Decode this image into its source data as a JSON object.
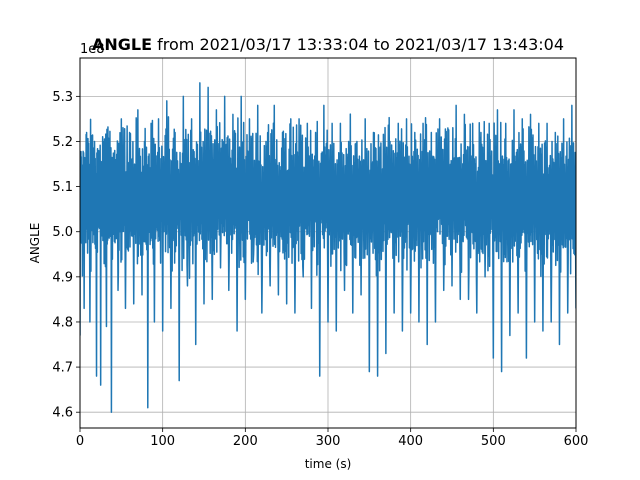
{
  "chart_data": {
    "type": "line",
    "title_bold": "ANGLE",
    "title_rest": " from 2021/03/17 13:33:04 to 2021/03/17 13:43:04",
    "xlabel": "time (s)",
    "ylabel": "ANGLE",
    "offset_label": "1e8",
    "xlim": [
      0,
      600
    ],
    "ylim": [
      4.565,
      5.385
    ],
    "xticks": [
      0,
      100,
      200,
      300,
      400,
      500,
      600
    ],
    "xtick_labels": [
      "0",
      "100",
      "200",
      "300",
      "400",
      "500",
      "600"
    ],
    "yticks": [
      4.6,
      4.7,
      4.8,
      4.9,
      5.0,
      5.1,
      5.2,
      5.3
    ],
    "ytick_labels": [
      "4.6",
      "4.7",
      "4.8",
      "4.9",
      "5.0",
      "5.1",
      "5.2",
      "5.3"
    ],
    "grid": true,
    "line_color": "#1f77b4",
    "series": [
      {
        "x": [
          0,
          2,
          5,
          8,
          12,
          16,
          20,
          22,
          25,
          28,
          32,
          35,
          38,
          42,
          46,
          50,
          55,
          60,
          65,
          70,
          75,
          78,
          82,
          86,
          90,
          95,
          100,
          105,
          110,
          115,
          120,
          125,
          130,
          135,
          140,
          145,
          150,
          155,
          160,
          165,
          170,
          175,
          180,
          185,
          190,
          195,
          200,
          205,
          210,
          215,
          220,
          225,
          230,
          235,
          240,
          245,
          250,
          255,
          260,
          265,
          270,
          275,
          280,
          285,
          290,
          295,
          300,
          305,
          310,
          315,
          320,
          325,
          330,
          335,
          340,
          345,
          350,
          355,
          360,
          365,
          370,
          375,
          380,
          385,
          390,
          395,
          400,
          405,
          410,
          415,
          420,
          425,
          430,
          435,
          440,
          445,
          450,
          455,
          460,
          465,
          470,
          475,
          480,
          485,
          490,
          495,
          500,
          505,
          510,
          515,
          520,
          525,
          530,
          535,
          540,
          545,
          550,
          555,
          560,
          565,
          570,
          575,
          580,
          585,
          590,
          595,
          600
        ],
        "y": [
          4.77,
          5.1,
          4.83,
          5.22,
          4.8,
          5.18,
          4.68,
          5.12,
          4.66,
          5.2,
          4.79,
          5.1,
          4.6,
          5.18,
          4.87,
          5.25,
          4.83,
          5.22,
          4.84,
          5.27,
          4.86,
          5.2,
          4.61,
          5.24,
          4.8,
          5.25,
          4.78,
          5.29,
          4.83,
          5.22,
          4.67,
          5.3,
          4.88,
          5.25,
          4.75,
          5.33,
          4.84,
          5.32,
          4.85,
          5.27,
          4.92,
          5.3,
          4.87,
          5.26,
          4.78,
          5.3,
          4.85,
          5.25,
          4.95,
          5.28,
          4.82,
          5.2,
          4.88,
          5.28,
          4.86,
          5.22,
          4.84,
          5.25,
          4.82,
          5.25,
          4.9,
          5.24,
          4.83,
          5.22,
          4.68,
          5.28,
          4.8,
          5.24,
          4.78,
          5.24,
          4.87,
          5.2,
          4.82,
          5.2,
          4.86,
          5.25,
          4.69,
          5.22,
          4.68,
          5.12,
          4.73,
          5.2,
          4.82,
          5.24,
          4.78,
          5.25,
          4.82,
          5.22,
          4.8,
          5.24,
          4.75,
          5.22,
          4.8,
          5.25,
          4.87,
          5.23,
          4.88,
          5.28,
          4.85,
          5.26,
          4.85,
          5.24,
          4.82,
          5.22,
          4.9,
          5.24,
          4.72,
          5.27,
          4.69,
          5.24,
          4.77,
          5.27,
          4.82,
          5.25,
          4.72,
          5.26,
          4.8,
          5.24,
          4.78,
          5.24,
          4.8,
          5.22,
          4.75,
          5.25,
          4.82,
          5.28,
          4.83
        ]
      }
    ]
  }
}
